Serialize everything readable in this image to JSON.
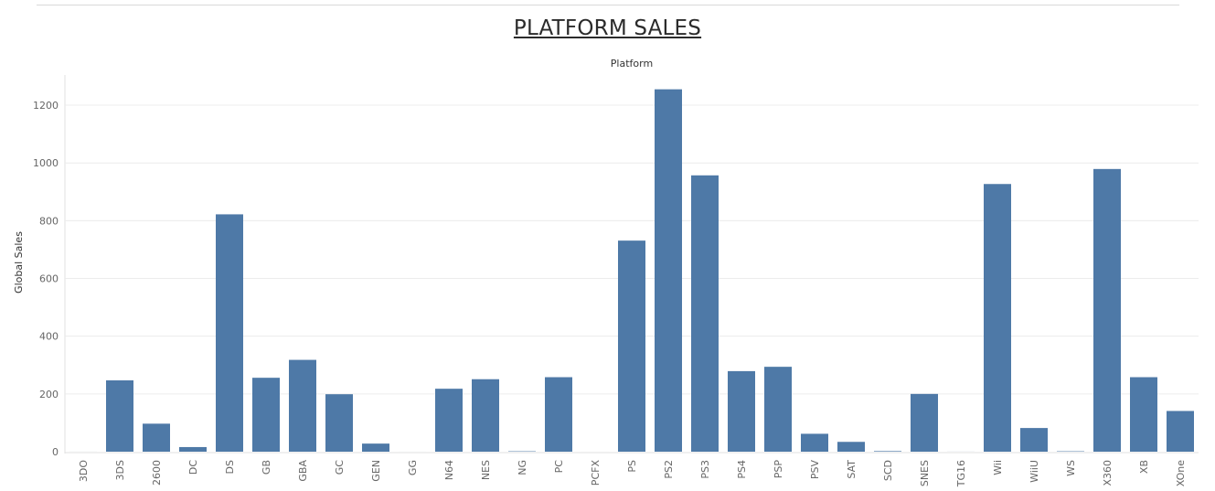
{
  "page": {
    "title": "PLATFORM SALES"
  },
  "colors": {
    "bar": "#4e79a7",
    "grid": "#ececec",
    "axis": "#e0e0e0"
  },
  "chart_data": {
    "type": "bar",
    "title": "PLATFORM SALES",
    "top_label": "Platform",
    "xlabel": "",
    "ylabel": "Global Sales",
    "ylim": [
      0,
      1300
    ],
    "yticks": [
      0,
      200,
      400,
      600,
      800,
      1000,
      1200
    ],
    "grid": true,
    "categories": [
      "3DO",
      "3DS",
      "2600",
      "DC",
      "DS",
      "GB",
      "GBA",
      "GC",
      "GEN",
      "GG",
      "N64",
      "NES",
      "NG",
      "PC",
      "PCFX",
      "PS",
      "PS2",
      "PS3",
      "PS4",
      "PSP",
      "PSV",
      "SAT",
      "SCD",
      "SNES",
      "TG16",
      "Wii",
      "WiiU",
      "WS",
      "X360",
      "XB",
      "XOne"
    ],
    "values": [
      0.1,
      247,
      97,
      16,
      822,
      256,
      318,
      199,
      28,
      0.04,
      218,
      251,
      1.4,
      258,
      0.03,
      731,
      1255,
      957,
      279,
      294,
      62,
      34,
      2,
      200,
      0.16,
      927,
      82,
      1.4,
      979,
      258,
      141
    ]
  }
}
